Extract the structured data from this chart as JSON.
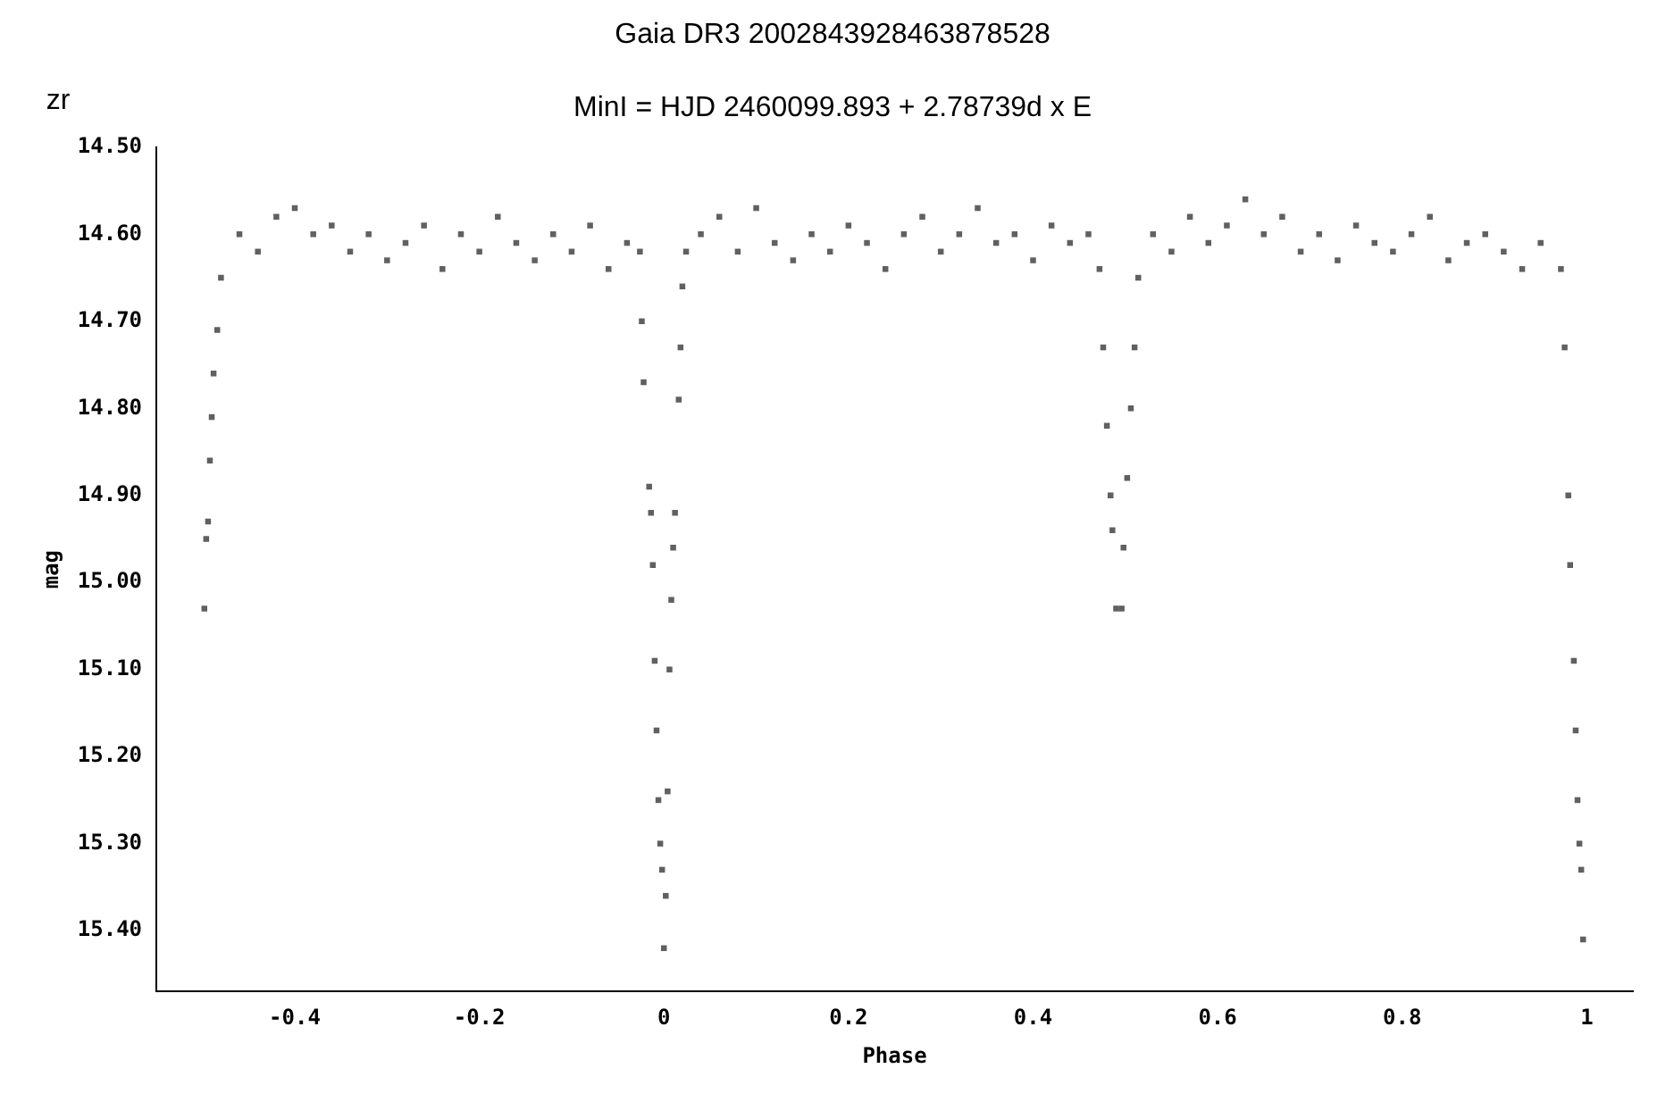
{
  "chart_data": {
    "type": "scatter",
    "title": "Gaia DR3 2002843928463878528",
    "subtitle": "MinI = HJD 2460099.893 + 2.78739d x E",
    "xlabel": "Phase",
    "ylabel": "mag",
    "annotations": [
      "zr"
    ],
    "marker": "square",
    "xlim": [
      -0.55,
      1.05
    ],
    "xticks": [
      -0.4,
      -0.2,
      0,
      {
        "value": 0.2,
        "label": "0.2"
      },
      {
        "value": 0.4,
        "label": "0.4"
      },
      {
        "value": 0.6,
        "label": "0.6"
      },
      {
        "value": 0.8,
        "label": "0.8"
      },
      1
    ],
    "ylim": [
      15.47,
      14.5
    ],
    "yticks": [
      {
        "value": 14.5,
        "label": "14.50"
      },
      {
        "value": 14.6,
        "label": "14.60"
      },
      {
        "value": 14.7,
        "label": "14.70"
      },
      {
        "value": 14.8,
        "label": "14.80"
      },
      {
        "value": 14.9,
        "label": "14.90"
      },
      {
        "value": 15.0,
        "label": "15.00"
      },
      {
        "value": 15.1,
        "label": "15.10"
      },
      {
        "value": 15.2,
        "label": "15.20"
      },
      {
        "value": 15.3,
        "label": "15.30"
      },
      {
        "value": 15.4,
        "label": "15.40"
      }
    ],
    "series": [
      {
        "color": "#606060",
        "x": [
          -0.498,
          -0.496,
          -0.494,
          -0.492,
          -0.49,
          -0.488,
          -0.484,
          -0.48,
          -0.46,
          -0.44,
          -0.42,
          -0.4,
          -0.38,
          -0.36,
          -0.34,
          -0.32,
          -0.3,
          -0.28,
          -0.26,
          -0.24,
          -0.22,
          -0.2,
          -0.18,
          -0.16,
          -0.14,
          -0.12,
          -0.1,
          -0.08,
          -0.06,
          -0.04,
          -0.026,
          -0.024,
          -0.022,
          -0.016,
          -0.014,
          -0.012,
          -0.01,
          -0.008,
          -0.006,
          -0.004,
          -0.002,
          0,
          0.002,
          0.004,
          0.006,
          0.008,
          0.01,
          0.012,
          0.016,
          0.018,
          0.02,
          0.024,
          0.04,
          0.06,
          0.08,
          0.1,
          0.12,
          0.14,
          0.16,
          0.18,
          0.2,
          0.22,
          0.24,
          0.26,
          0.28,
          0.3,
          0.32,
          0.34,
          0.36,
          0.38,
          0.4,
          0.42,
          0.44,
          0.46,
          0.472,
          0.476,
          0.48,
          0.484,
          0.486,
          0.49,
          0.496,
          0.498,
          0.502,
          0.506,
          0.51,
          0.514,
          0.53,
          0.55,
          0.57,
          0.59,
          0.61,
          0.63,
          0.65,
          0.67,
          0.69,
          0.71,
          0.73,
          0.75,
          0.77,
          0.79,
          0.81,
          0.83,
          0.85,
          0.87,
          0.89,
          0.91,
          0.93,
          0.95,
          0.972,
          0.976,
          0.98,
          0.982,
          0.986,
          0.988,
          0.99,
          0.992,
          0.994,
          0.996
        ],
        "values": [
          15.03,
          14.95,
          14.93,
          14.86,
          14.81,
          14.76,
          14.71,
          14.65,
          14.6,
          14.62,
          14.58,
          14.57,
          14.6,
          14.59,
          14.62,
          14.6,
          14.63,
          14.61,
          14.59,
          14.64,
          14.6,
          14.62,
          14.58,
          14.61,
          14.63,
          14.6,
          14.62,
          14.59,
          14.64,
          14.61,
          14.62,
          14.7,
          14.77,
          14.89,
          14.92,
          14.98,
          15.09,
          15.17,
          15.25,
          15.3,
          15.33,
          15.42,
          15.36,
          15.24,
          15.1,
          15.02,
          14.96,
          14.92,
          14.79,
          14.73,
          14.66,
          14.62,
          14.6,
          14.58,
          14.62,
          14.57,
          14.61,
          14.63,
          14.6,
          14.62,
          14.59,
          14.61,
          14.64,
          14.6,
          14.58,
          14.62,
          14.6,
          14.57,
          14.61,
          14.6,
          14.63,
          14.59,
          14.61,
          14.6,
          14.64,
          14.73,
          14.82,
          14.9,
          14.94,
          15.03,
          15.03,
          14.96,
          14.88,
          14.8,
          14.73,
          14.65,
          14.6,
          14.62,
          14.58,
          14.61,
          14.59,
          14.56,
          14.6,
          14.58,
          14.62,
          14.6,
          14.63,
          14.59,
          14.61,
          14.62,
          14.6,
          14.58,
          14.63,
          14.61,
          14.6,
          14.62,
          14.64,
          14.61,
          14.64,
          14.73,
          14.9,
          14.98,
          15.09,
          15.17,
          15.25,
          15.3,
          15.33,
          15.41
        ]
      }
    ]
  }
}
